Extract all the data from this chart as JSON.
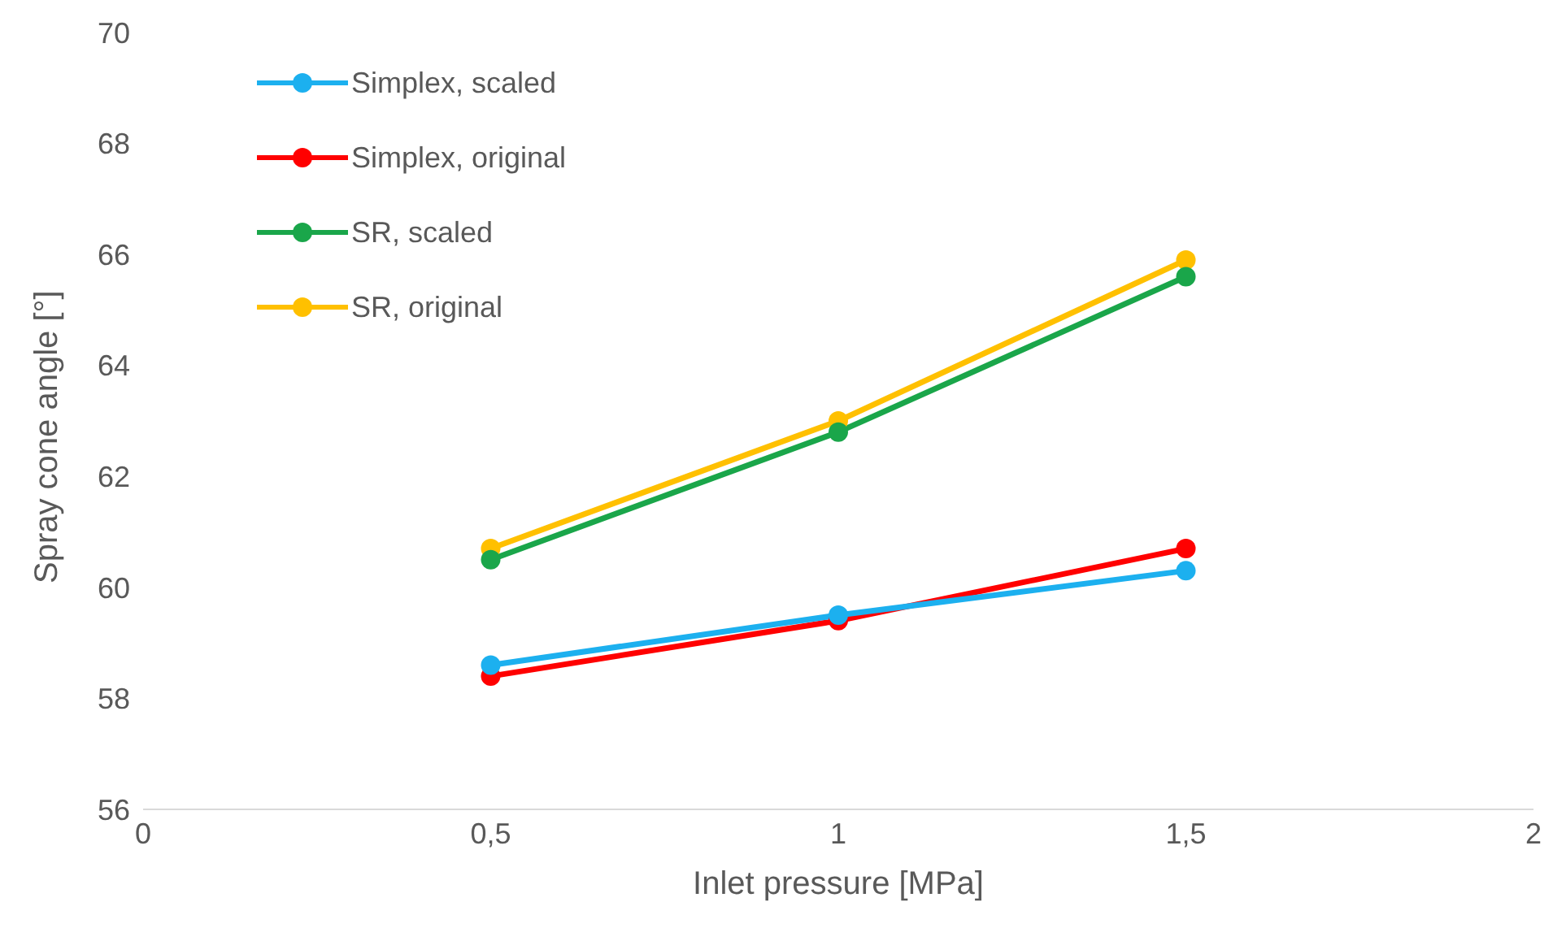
{
  "chart_data": {
    "type": "line",
    "xlabel": "Inlet pressure [MPa]",
    "ylabel": "Spray cone angle [°]",
    "x": [
      0.5,
      1,
      1.5
    ],
    "series": [
      {
        "name": "Simplex, scaled",
        "color": "#1cb0ef",
        "values": [
          58.6,
          59.5,
          60.3
        ]
      },
      {
        "name": "Simplex, original",
        "color": "#ff0000",
        "values": [
          58.4,
          59.4,
          60.7
        ]
      },
      {
        "name": "SR, scaled",
        "color": "#1aa64a",
        "values": [
          60.5,
          62.8,
          65.6
        ]
      },
      {
        "name": "SR, original",
        "color": "#ffc000",
        "values": [
          60.7,
          63.0,
          65.9
        ]
      }
    ],
    "xlim": [
      0,
      2
    ],
    "xticks": [
      0,
      {
        "value": 0.5,
        "label": "0,5"
      },
      1,
      {
        "value": 1.5,
        "label": "1,5"
      },
      2
    ],
    "ylim": [
      56,
      70
    ],
    "yticks": [
      56,
      58,
      60,
      62,
      64,
      66,
      68,
      70
    ],
    "grid": false,
    "legend": "top left",
    "marker": "circle",
    "line_style": "solid"
  }
}
